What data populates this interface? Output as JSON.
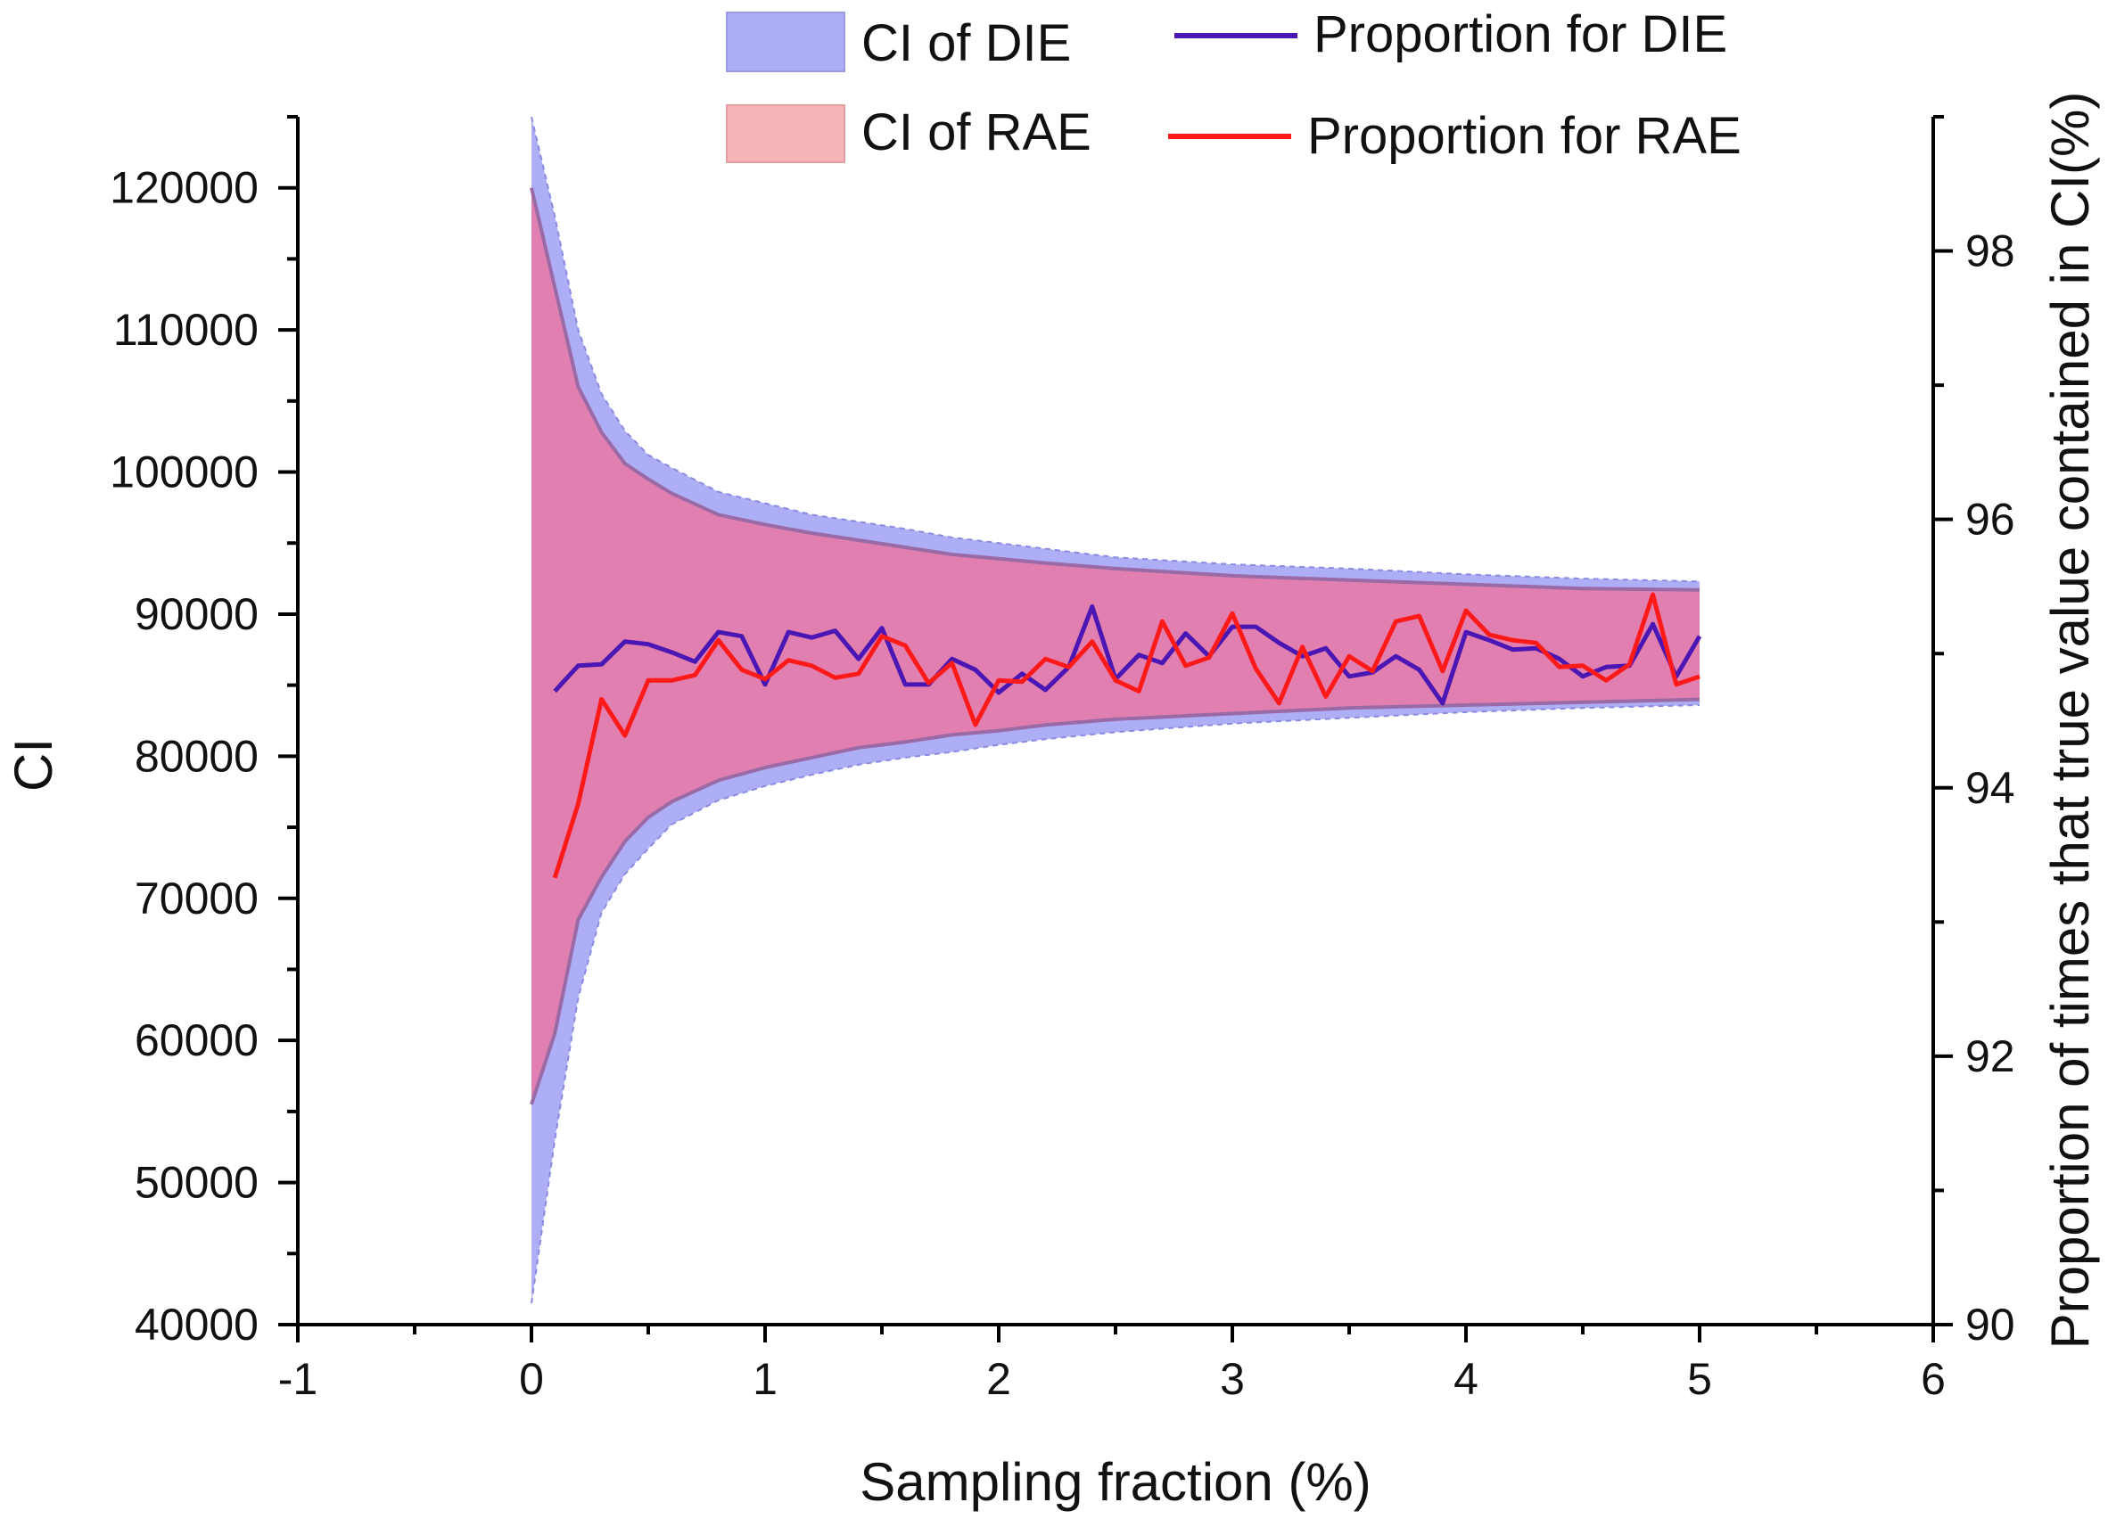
{
  "chart_data": {
    "type": "line",
    "title": "",
    "xlabel": "Sampling fraction (%)",
    "ylabel_left": "CI",
    "ylabel_right": "Proportion of times that true value contained in CI(%)",
    "xlim": [
      -1,
      6
    ],
    "ylim_left": [
      40000,
      125000
    ],
    "ylim_right": [
      90,
      99
    ],
    "x_ticks": [
      -1,
      0,
      1,
      2,
      3,
      4,
      5,
      6
    ],
    "x_tick_labels": [
      "-1",
      "0",
      "1",
      "2",
      "3",
      "4",
      "5",
      "6"
    ],
    "y_left_ticks": [
      40000,
      50000,
      60000,
      70000,
      80000,
      90000,
      100000,
      110000,
      120000
    ],
    "y_left_tick_labels": [
      "40000",
      "50000",
      "60000",
      "70000",
      "80000",
      "90000",
      "100000",
      "110000",
      "120000"
    ],
    "y_right_ticks": [
      90,
      92,
      94,
      96,
      98
    ],
    "y_right_tick_labels": [
      "90",
      "92",
      "94",
      "96",
      "98"
    ],
    "legend": {
      "ci_die": "CI of DIE",
      "ci_rae": "CI of RAE",
      "prop_die": "Proportion for DIE",
      "prop_rae": "Proportion for RAE"
    },
    "colors": {
      "ci_die_fill": "#aeaef6",
      "ci_die_edge": "#8a8ae0",
      "ci_rae_fill": "#e07fb0",
      "ci_rae_edge": "#9a6aa6",
      "legend_rae_fill": "#f6b5b8",
      "prop_die": "#4a16b4",
      "prop_rae": "#ff1a1a",
      "axis": "#000000"
    },
    "bands": {
      "x": [
        0,
        0.1,
        0.2,
        0.3,
        0.4,
        0.5,
        0.6,
        0.8,
        1.0,
        1.2,
        1.4,
        1.6,
        1.8,
        2.0,
        2.2,
        2.5,
        3.0,
        3.5,
        4.0,
        4.5,
        5.0
      ],
      "die_upper": [
        125000,
        118000,
        110000,
        105500,
        102900,
        101200,
        100300,
        98600,
        97800,
        97000,
        96500,
        96000,
        95400,
        95000,
        94600,
        94000,
        93500,
        93200,
        92800,
        92500,
        92300
      ],
      "die_lower": [
        41500,
        53000,
        63000,
        69000,
        71700,
        73500,
        75200,
        76900,
        77900,
        78700,
        79400,
        79900,
        80300,
        80800,
        81200,
        81700,
        82300,
        82700,
        83100,
        83400,
        83600
      ],
      "rae_upper": [
        120000,
        113000,
        106000,
        102800,
        100600,
        99500,
        98500,
        97000,
        96300,
        95700,
        95200,
        94700,
        94200,
        93900,
        93600,
        93200,
        92700,
        92400,
        92100,
        91800,
        91700
      ],
      "rae_lower": [
        55500,
        60500,
        68500,
        71500,
        74000,
        75700,
        76800,
        78300,
        79200,
        79900,
        80600,
        81000,
        81500,
        81800,
        82200,
        82600,
        83000,
        83400,
        83600,
        83800,
        84000
      ]
    },
    "series": [
      {
        "name": "Proportion for DIE",
        "x": [
          0.1,
          0.2,
          0.3,
          0.4,
          0.5,
          0.6,
          0.7,
          0.8,
          0.9,
          1.0,
          1.1,
          1.2,
          1.3,
          1.4,
          1.5,
          1.6,
          1.7,
          1.8,
          1.9,
          2.0,
          2.1,
          2.2,
          2.3,
          2.4,
          2.5,
          2.6,
          2.7,
          2.8,
          2.9,
          3.0,
          3.1,
          3.2,
          3.3,
          3.4,
          3.5,
          3.6,
          3.7,
          3.8,
          3.9,
          4.0,
          4.1,
          4.2,
          4.3,
          4.4,
          4.5,
          4.6,
          4.7,
          4.8,
          4.9,
          5.0
        ],
        "values": [
          94.72,
          94.91,
          94.92,
          95.09,
          95.07,
          95.01,
          94.94,
          95.16,
          95.13,
          94.77,
          95.16,
          95.12,
          95.17,
          94.96,
          95.19,
          94.77,
          94.77,
          94.96,
          94.88,
          94.71,
          94.85,
          94.73,
          94.9,
          95.35,
          94.81,
          94.99,
          94.93,
          95.15,
          94.98,
          95.2,
          95.2,
          95.08,
          94.98,
          95.04,
          94.83,
          94.86,
          94.98,
          94.88,
          94.63,
          95.16,
          95.1,
          95.03,
          95.04,
          94.96,
          94.83,
          94.9,
          94.91,
          95.22,
          94.83,
          95.13
        ]
      },
      {
        "name": "Proportion for RAE",
        "x": [
          0.1,
          0.2,
          0.3,
          0.4,
          0.5,
          0.6,
          0.7,
          0.8,
          0.9,
          1.0,
          1.1,
          1.2,
          1.3,
          1.4,
          1.5,
          1.6,
          1.7,
          1.8,
          1.9,
          2.0,
          2.1,
          2.2,
          2.3,
          2.4,
          2.5,
          2.6,
          2.7,
          2.8,
          2.9,
          3.0,
          3.1,
          3.2,
          3.3,
          3.4,
          3.5,
          3.6,
          3.7,
          3.8,
          3.9,
          4.0,
          4.1,
          4.2,
          4.3,
          4.4,
          4.5,
          4.6,
          4.7,
          4.8,
          4.9,
          5.0
        ],
        "values": [
          93.33,
          93.88,
          94.66,
          94.39,
          94.8,
          94.8,
          94.84,
          95.1,
          94.88,
          94.81,
          94.95,
          94.91,
          94.82,
          94.85,
          95.13,
          95.06,
          94.78,
          94.93,
          94.47,
          94.8,
          94.79,
          94.96,
          94.9,
          95.09,
          94.8,
          94.72,
          95.24,
          94.91,
          94.97,
          95.3,
          94.89,
          94.63,
          95.05,
          94.68,
          94.98,
          94.87,
          95.24,
          95.28,
          94.87,
          95.32,
          95.14,
          95.1,
          95.08,
          94.9,
          94.91,
          94.8,
          94.92,
          95.44,
          94.77,
          94.83
        ]
      }
    ]
  }
}
